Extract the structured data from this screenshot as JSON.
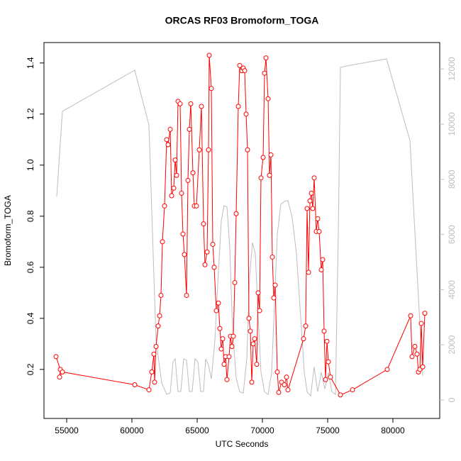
{
  "chart_data": {
    "type": "line",
    "title": "ORCAS RF03 Bromoform_TOGA",
    "x_label": "UTC Seconds",
    "y_label": "Bromoform_TOGA",
    "xlim": [
      53261,
      83587
    ],
    "ylim": [
      0.008,
      1.48
    ],
    "y2lim": [
      -668,
      12956
    ],
    "xticks": [
      55000,
      60000,
      65000,
      70000,
      75000,
      80000
    ],
    "yticks": [
      0.2,
      0.4,
      0.6,
      0.8,
      {
        "value": 1.0,
        "label": "1.0"
      },
      1.2,
      1.4
    ],
    "y2ticks": [
      0,
      2000,
      4000,
      6000,
      8000,
      10000,
      12000
    ],
    "y2_color": "#bebebe",
    "series": [
      {
        "color": "#bebebe",
        "axis": "y2",
        "points": false,
        "x": [
          54239,
          54674,
          60217,
          61304,
          61848,
          62283,
          62663,
          62935,
          63152,
          63315,
          63533,
          63750,
          63967,
          64185,
          64402,
          64620,
          64837,
          65054,
          65272,
          65489,
          65652,
          65870,
          66087,
          66359,
          66576,
          66848,
          67065,
          67283,
          67500,
          67717,
          67989,
          68261,
          68533,
          68804,
          69022,
          69239,
          69457,
          69674,
          69891,
          70163,
          70435,
          70707,
          70924,
          71141,
          71413,
          71685,
          71957,
          72283,
          72609,
          72935,
          73207,
          73424,
          73696,
          73967,
          74239,
          74511,
          74783,
          75054,
          75326,
          75598,
          75815,
          75978,
          76739,
          79511,
          81304,
          82283
        ],
        "values": [
          7378,
          10463,
          11954,
          9974,
          2159,
          617,
          206,
          257,
          1388,
          1491,
          308,
          308,
          1491,
          1440,
          308,
          308,
          1491,
          1388,
          308,
          308,
          1491,
          1260,
          760,
          2159,
          4216,
          6500,
          7044,
          7000,
          5500,
          2500,
          800,
          300,
          250,
          1500,
          4500,
          5707,
          5300,
          3000,
          1000,
          300,
          200,
          1000,
          3500,
          6000,
          7100,
          7200,
          7224,
          6600,
          5300,
          3000,
          1000,
          300,
          150,
          1200,
          300,
          1000,
          400,
          1000,
          300,
          200,
          6000,
          12057,
          12134,
          12365,
          9409,
          874
        ]
      },
      {
        "color": "#ff0000",
        "axis": "y",
        "points": true,
        "x": [
          54185,
          54511,
          54457,
          54674,
          60217,
          61304,
          61522,
          61685,
          61739,
          61848,
          62011,
          62120,
          62228,
          62337,
          62500,
          62663,
          62772,
          62935,
          63043,
          63207,
          63315,
          63424,
          63533,
          63696,
          63804,
          63913,
          64022,
          64185,
          64293,
          64402,
          64511,
          64674,
          64783,
          64946,
          65163,
          65326,
          65489,
          65598,
          65761,
          65870,
          65924,
          66087,
          66196,
          66304,
          66467,
          66630,
          66739,
          66848,
          66957,
          67065,
          67174,
          67283,
          67446,
          67554,
          67663,
          67772,
          67880,
          67989,
          68152,
          68261,
          68424,
          68533,
          68641,
          68750,
          68859,
          68967,
          69076,
          69185,
          69293,
          69402,
          69565,
          69674,
          69783,
          69891,
          70054,
          70163,
          70272,
          70435,
          70543,
          70652,
          70761,
          70870,
          70978,
          71141,
          71250,
          71467,
          71685,
          71848,
          71957,
          73152,
          73315,
          73424,
          73533,
          73641,
          73750,
          73859,
          73967,
          74130,
          74239,
          74348,
          74511,
          74620,
          74728,
          74837,
          74946,
          75054,
          75217,
          75978,
          76902,
          79565,
          81359,
          81467,
          81685,
          81848,
          81957,
          82065,
          82174,
          82283,
          82446
        ],
        "values": [
          0.25,
          0.2,
          0.17,
          0.19,
          0.14,
          0.12,
          0.19,
          0.26,
          0.15,
          0.29,
          0.37,
          0.41,
          0.49,
          0.7,
          0.84,
          1.1,
          1.08,
          1.14,
          0.88,
          0.91,
          1.02,
          0.96,
          1.25,
          1.24,
          0.89,
          0.73,
          0.65,
          0.49,
          0.94,
          1.14,
          1.24,
          0.97,
          0.84,
          0.84,
          1.06,
          1.23,
          0.77,
          0.61,
          0.66,
          1.06,
          1.43,
          1.3,
          0.69,
          0.6,
          0.43,
          0.46,
          0.36,
          0.28,
          0.32,
          0.22,
          0.25,
          0.16,
          0.25,
          0.33,
          0.29,
          0.33,
          0.54,
          0.81,
          1.23,
          1.39,
          1.37,
          1.38,
          1.37,
          1.2,
          1.06,
          0.4,
          0.35,
          0.15,
          0.3,
          0.32,
          0.22,
          0.5,
          0.43,
          0.95,
          1.03,
          1.36,
          1.42,
          1.26,
          0.96,
          1.04,
          0.64,
          0.48,
          0.53,
          0.19,
          0.11,
          0.15,
          0.14,
          0.17,
          0.12,
          0.32,
          0.37,
          0.83,
          0.58,
          0.86,
          0.89,
          0.83,
          0.95,
          0.74,
          0.79,
          0.74,
          0.59,
          0.63,
          0.35,
          0.16,
          0.31,
          0.23,
          0.17,
          0.1,
          0.12,
          0.2,
          0.41,
          0.25,
          0.29,
          0.26,
          0.19,
          0.2,
          0.38,
          0.21,
          0.42
        ]
      }
    ]
  }
}
